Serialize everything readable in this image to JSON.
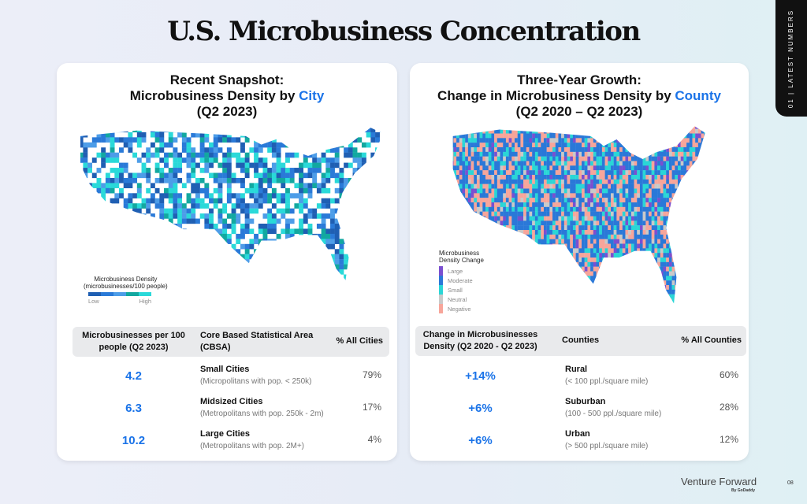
{
  "title": "U.S. Microbusiness Concentration",
  "side_tab": "01 | LATEST NUMBERS",
  "left": {
    "title_line1": "Recent Snapshot:",
    "title_line2": "Microbusiness Density by ",
    "title_hl": "City",
    "title_line3": "(Q2 2023)",
    "legend": {
      "title1": "Microbusiness Density",
      "title2": "(microbusinesses/100 people)",
      "low": "Low",
      "high": "High",
      "colors": [
        "#1f5fb3",
        "#2a7ad8",
        "#4d9de8",
        "#12a8a0",
        "#2ad9d9"
      ]
    },
    "headers": [
      "Microbusinesses per 100 people (Q2 2023)",
      "Core Based Statistical Area (CBSA)",
      "% All Cities"
    ],
    "rows": [
      {
        "value": "4.2",
        "name": "Small Cities",
        "desc": "(Micropolitans with pop. < 250k)",
        "pct": "79%"
      },
      {
        "value": "6.3",
        "name": "Midsized Cities",
        "desc": "(Metropolitans with pop. 250k - 2m)",
        "pct": "17%"
      },
      {
        "value": "10.2",
        "name": "Large Cities",
        "desc": "(Metropolitans with pop. 2M+)",
        "pct": "4%"
      }
    ]
  },
  "right": {
    "title_line1": "Three-Year Growth:",
    "title_line2": "Change in Microbusiness Density by ",
    "title_hl": "County",
    "title_line3": "(Q2 2020 – Q2 2023)",
    "legend": {
      "title1": "Microbusiness",
      "title2": "Density Change",
      "items": [
        {
          "label": "Large",
          "color": "#7b4fd0"
        },
        {
          "label": "Moderate",
          "color": "#2a78d8"
        },
        {
          "label": "Small",
          "color": "#2ad6d6"
        },
        {
          "label": "Neutral",
          "color": "#c9c9c9"
        },
        {
          "label": "Negative",
          "color": "#f7a59a"
        }
      ]
    },
    "headers": [
      "Change in Microbusinesses Density (Q2 2020 - Q2 2023)",
      "Counties",
      "% All Counties"
    ],
    "rows": [
      {
        "value": "+14%",
        "name": "Rural",
        "desc": "(< 100 ppl./square mile)",
        "pct": "60%"
      },
      {
        "value": "+6%",
        "name": "Suburban",
        "desc": "(100 - 500 ppl./square mile)",
        "pct": "28%"
      },
      {
        "value": "+6%",
        "name": "Urban",
        "desc": "(> 500 ppl./square mile)",
        "pct": "12%"
      }
    ]
  },
  "footer": {
    "brand": "Venture Forward",
    "byline": "By GoDaddy",
    "page": "08"
  }
}
